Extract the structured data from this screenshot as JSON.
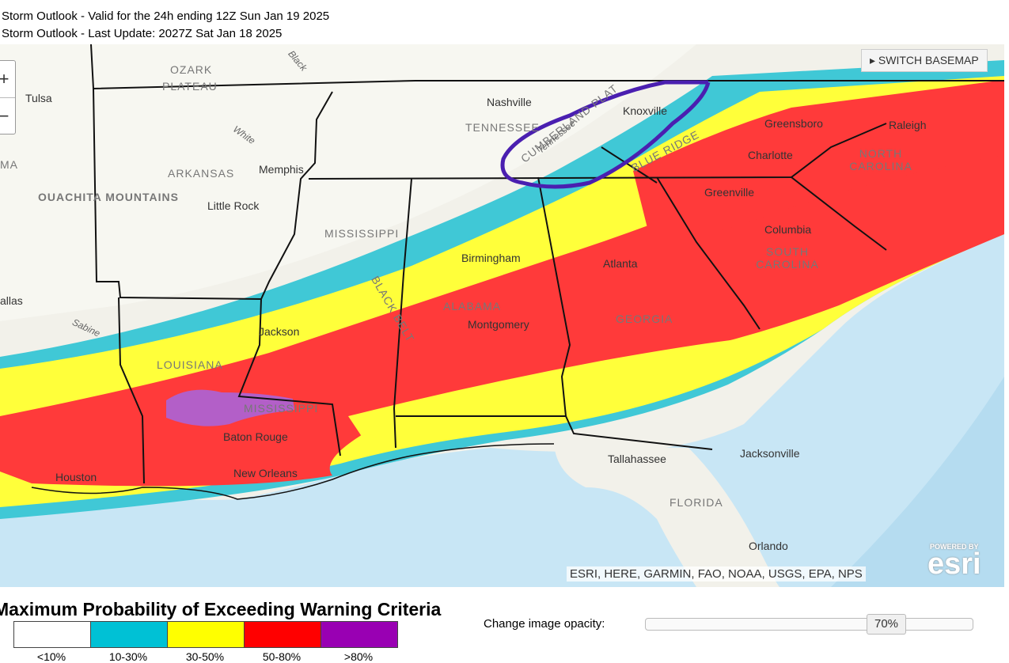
{
  "header": {
    "line1": "Storm Outlook - Valid for the 24h ending 12Z Sun Jan 19 2025",
    "line2": "Storm Outlook - Last Update: 2027Z Sat Jan 18 2025"
  },
  "map": {
    "switch_basemap": "SWITCH BASEMAP",
    "attribution": "ESRI, HERE, GARMIN, FAO, NOAA, USGS, EPA, NPS",
    "powered_by": "POWERED BY",
    "esri_logo": "esri",
    "zoom_in": "+",
    "zoom_out": "−",
    "labels": {
      "ozark": "OZARK",
      "plateau": "PLATEAU",
      "tulsa": "Tulsa",
      "ma": "MA",
      "arkansas": "ARKANSAS",
      "ouachita": "OUACHITA MOUNTAINS",
      "memphis": "Memphis",
      "little_rock": "Little Rock",
      "nashville": "Nashville",
      "tennessee": "TENNESSEE",
      "knoxville": "Knoxville",
      "greensboro": "Greensboro",
      "raleigh": "Raleigh",
      "north_carolina": "NORTH CAROLINA",
      "charlotte": "Charlotte",
      "greenville": "Greenville",
      "columbia": "Columbia",
      "south_carolina": "SOUTH CAROLINA",
      "mississippi_state": "MISSISSIPPI",
      "birmingham": "Birmingham",
      "atlanta": "Atlanta",
      "alabama": "ALABAMA",
      "montgomery": "Montgomery",
      "georgia": "GEORGIA",
      "dallas": "allas",
      "jackson": "Jackson",
      "louisiana": "LOUISIANA",
      "mississippi_river": "MISSISSIPPI",
      "baton_rouge": "Baton Rouge",
      "new_orleans": "New Orleans",
      "houston": "Houston",
      "tallahassee": "Tallahassee",
      "jacksonville": "Jacksonville",
      "florida": "FLORIDA",
      "orlando": "Orlando",
      "black_belt": "BLACK BELT",
      "cumberland": "CUMBERLAND PLAT",
      "blue_ridge": "BLUE RIDGE",
      "white": "White",
      "black": "Black",
      "sabine": "Sabine",
      "tennessee_river": "Tennessee"
    }
  },
  "legend": {
    "title": "Maximum Probability of Exceeding Warning Criteria",
    "items": [
      {
        "label": "<10%",
        "color": "#ffffff"
      },
      {
        "label": "10-30%",
        "color": "#00c1d5"
      },
      {
        "label": "30-50%",
        "color": "#ffff00"
      },
      {
        "label": "50-80%",
        "color": "#ff0000"
      },
      {
        "label": ">80%",
        "color": "#9900b3"
      }
    ]
  },
  "opacity": {
    "label": "Change image opacity:",
    "value": "70%"
  }
}
